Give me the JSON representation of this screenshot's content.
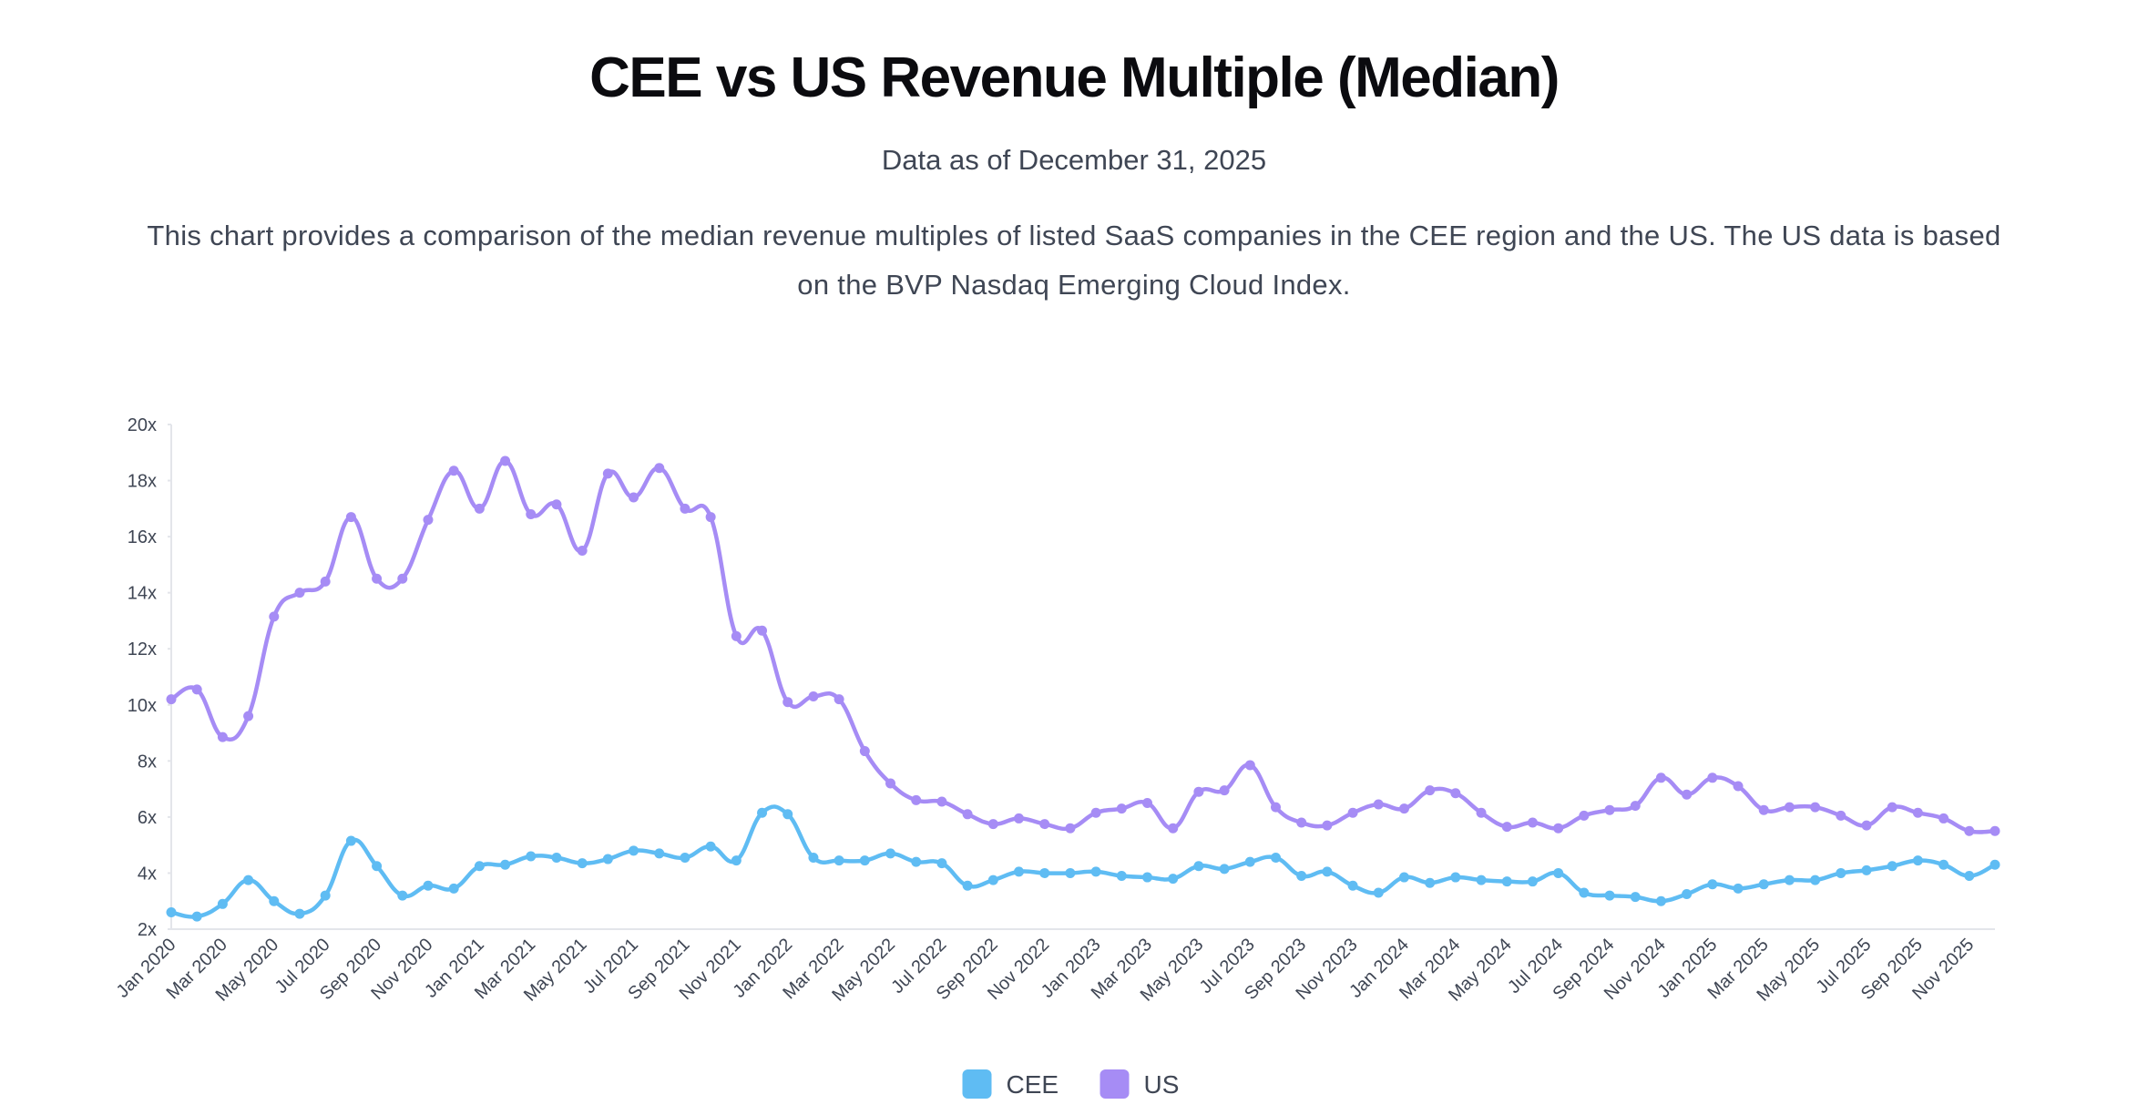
{
  "title": "CEE vs US Revenue Multiple (Median)",
  "subtitle": "Data as of December 31, 2025",
  "description": "This chart provides a comparison of the median revenue multiples of listed SaaS companies in the CEE region and the US. The US data is based on the BVP Nasdaq Emerging Cloud Index.",
  "chart_data": {
    "type": "line",
    "categories": [
      "Jan 2020",
      null,
      "Mar 2020",
      null,
      "May 2020",
      null,
      "Jul 2020",
      null,
      "Sep 2020",
      null,
      "Nov 2020",
      null,
      "Jan 2021",
      null,
      "Mar 2021",
      null,
      "May 2021",
      null,
      "Jul 2021",
      null,
      "Sep 2021",
      null,
      "Nov 2021",
      null,
      "Jan 2022",
      null,
      "Mar 2022",
      null,
      "May 2022",
      null,
      "Jul 2022",
      null,
      "Sep 2022",
      null,
      "Nov 2022",
      null,
      "Jan 2023",
      null,
      "Mar 2023",
      null,
      "May 2023",
      null,
      "Jul 2023",
      null,
      "Sep 2023",
      null,
      "Nov 2023",
      null,
      "Jan 2024",
      null,
      "Mar 2024",
      null,
      "May 2024",
      null,
      "Jul 2024",
      null,
      "Sep 2024",
      null,
      "Nov 2024",
      null,
      "Jan 2025",
      null,
      "Mar 2025",
      null,
      "May 2025",
      null,
      "Jul 2025",
      null,
      "Sep 2025",
      null,
      "Nov 2025",
      null
    ],
    "series": [
      {
        "name": "CEE",
        "color": "#5fbcf3",
        "values": [
          2.6,
          2.45,
          2.9,
          3.75,
          3.0,
          2.55,
          3.2,
          5.15,
          4.25,
          3.2,
          3.55,
          3.45,
          4.25,
          4.3,
          4.6,
          4.55,
          4.35,
          4.5,
          4.8,
          4.7,
          4.55,
          4.95,
          4.45,
          6.15,
          6.1,
          4.55,
          4.45,
          4.45,
          4.7,
          4.4,
          4.35,
          3.55,
          3.75,
          4.05,
          4.0,
          4.0,
          4.05,
          3.9,
          3.85,
          3.8,
          4.25,
          4.15,
          4.4,
          4.55,
          3.9,
          4.05,
          3.55,
          3.3,
          3.85,
          3.65,
          3.85,
          3.75,
          3.7,
          3.7,
          4.0,
          3.3,
          3.2,
          3.15,
          3.0,
          3.25,
          3.6,
          3.45,
          3.6,
          3.75,
          3.75,
          4.0,
          4.1,
          4.25,
          4.45,
          4.3,
          3.9,
          4.3
        ]
      },
      {
        "name": "US",
        "color": "#a68cf5",
        "values": [
          10.2,
          10.55,
          8.85,
          9.6,
          13.15,
          14.0,
          14.4,
          16.7,
          14.5,
          14.5,
          16.6,
          18.35,
          17.0,
          18.7,
          16.8,
          17.15,
          15.5,
          18.25,
          17.4,
          18.45,
          17.0,
          16.7,
          12.45,
          12.65,
          10.1,
          10.3,
          10.2,
          8.35,
          7.2,
          6.6,
          6.55,
          6.1,
          5.75,
          5.95,
          5.75,
          5.6,
          6.15,
          6.3,
          6.5,
          5.6,
          6.9,
          6.95,
          7.85,
          6.35,
          5.8,
          5.7,
          6.15,
          6.45,
          6.3,
          6.95,
          6.85,
          6.15,
          5.65,
          5.8,
          5.6,
          6.05,
          6.25,
          6.4,
          7.4,
          6.8,
          7.4,
          7.1,
          6.25,
          6.35,
          6.35,
          6.05,
          5.7,
          6.35,
          6.15,
          5.95,
          5.5,
          5.5
        ]
      }
    ],
    "ylim": [
      2,
      20
    ],
    "yticks": [
      {
        "value": 2,
        "label": "2x"
      },
      {
        "value": 4,
        "label": "4x"
      },
      {
        "value": 6,
        "label": "6x"
      },
      {
        "value": 8,
        "label": "8x"
      },
      {
        "value": 10,
        "label": "10x"
      },
      {
        "value": 12,
        "label": "12x"
      },
      {
        "value": 14,
        "label": "14x"
      },
      {
        "value": 16,
        "label": "16x"
      },
      {
        "value": 18,
        "label": "18x"
      },
      {
        "value": 20,
        "label": "20x"
      }
    ],
    "grid": false,
    "legend": "bottom"
  }
}
